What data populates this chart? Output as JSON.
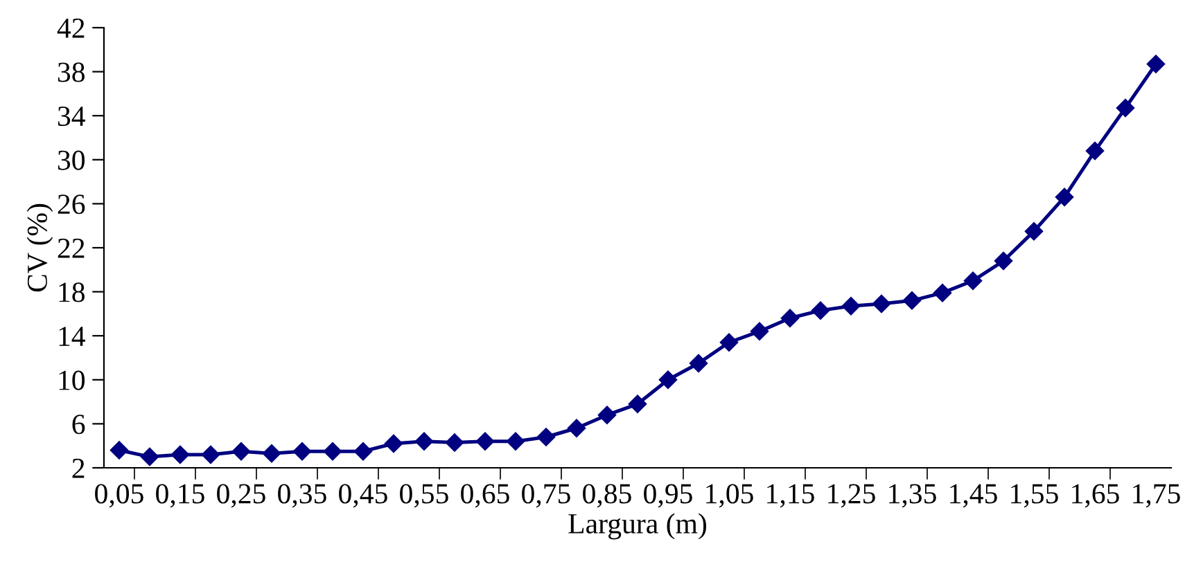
{
  "chart_data": {
    "type": "line",
    "xlabel": "Largura (m)",
    "ylabel": "CV (%)",
    "categories": [
      "0,05",
      null,
      "0,15",
      null,
      "0,25",
      null,
      "0,35",
      null,
      "0,45",
      null,
      "0,55",
      null,
      "0,65",
      null,
      "0,75",
      null,
      "0,85",
      null,
      "0,95",
      null,
      "1,05",
      null,
      "1,15",
      null,
      "1,25",
      null,
      "1,35",
      null,
      "1,45",
      null,
      "1,55",
      null,
      "1,65",
      null,
      "1,75"
    ],
    "series": [
      {
        "color": "#000080",
        "values": [
          3.6,
          3.0,
          3.2,
          3.2,
          3.5,
          3.3,
          3.5,
          3.5,
          3.5,
          4.2,
          4.4,
          4.3,
          4.4,
          4.4,
          4.8,
          5.6,
          6.8,
          7.8,
          10.0,
          11.5,
          13.4,
          14.4,
          15.6,
          16.3,
          16.7,
          16.9,
          17.2,
          17.9,
          19.0,
          20.8,
          23.5,
          26.6,
          30.8,
          34.7,
          38.7
        ]
      }
    ],
    "ylim": [
      2,
      42
    ],
    "yticks": [
      2,
      6,
      10,
      14,
      18,
      22,
      26,
      30,
      34,
      38,
      42
    ],
    "marker": "diamond",
    "line_style": "solid",
    "grid": false,
    "legend": false
  }
}
